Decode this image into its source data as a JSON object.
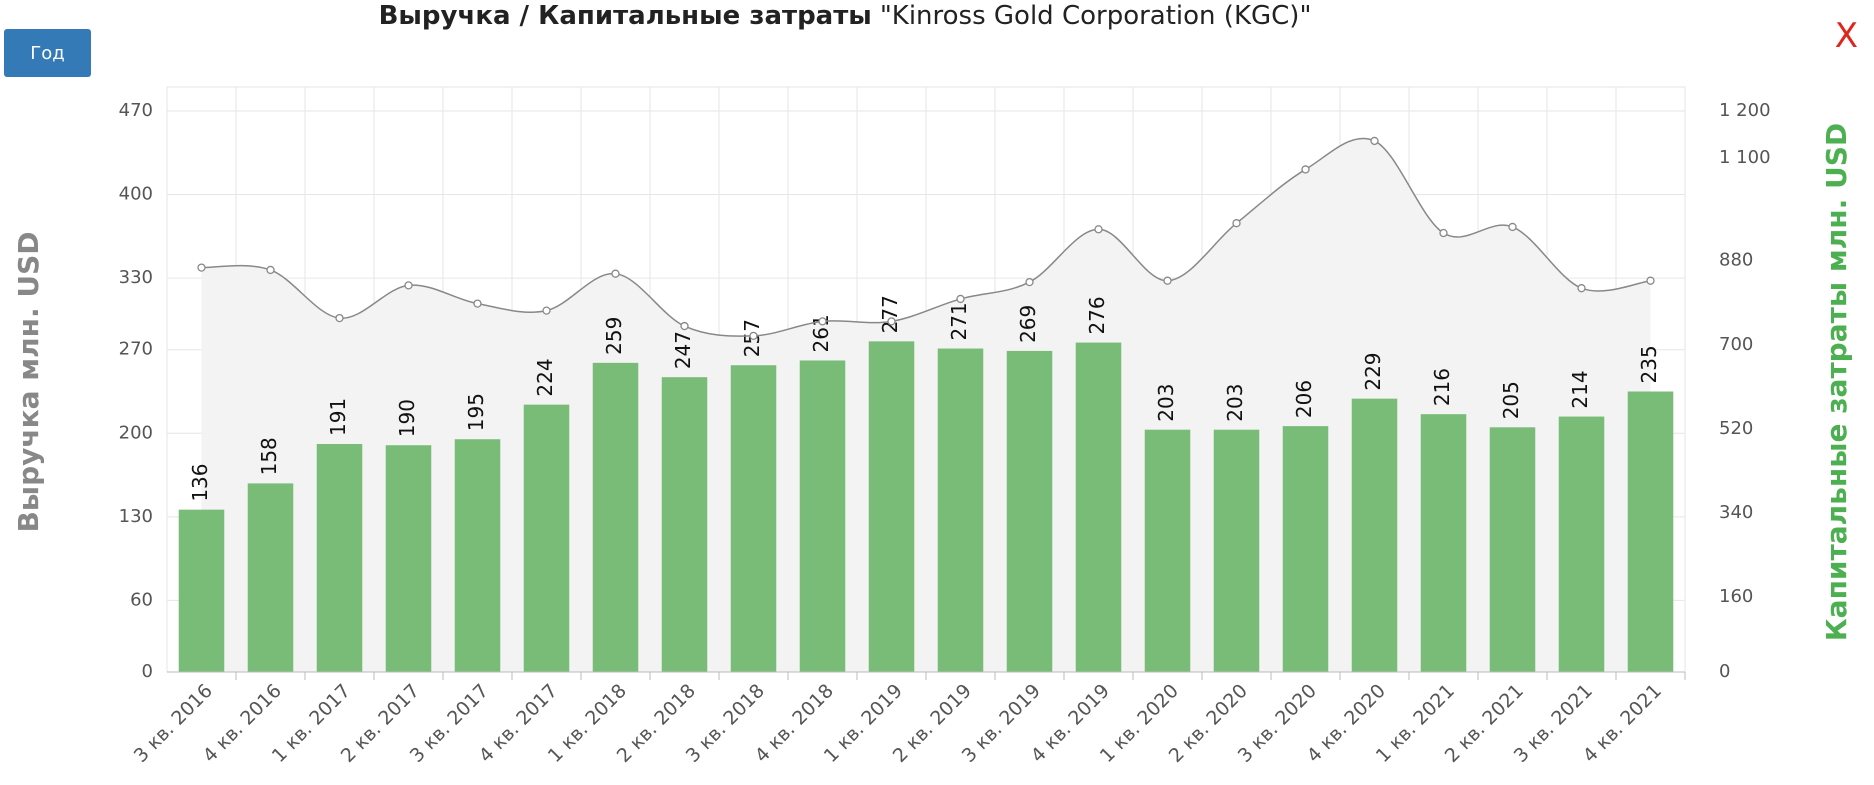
{
  "period_button": "Год",
  "close_button": "X",
  "chart_data": {
    "type": "combo",
    "title": "Выручка / Капитальные затраты",
    "title_suffix": "\"Kinross Gold Corporation (KGC)\"",
    "y_label": "Выручка млн. USD",
    "y2_label": "Капитальные затраты млн. USD",
    "categories": [
      "3 кв. 2016",
      "4 кв. 2016",
      "1 кв. 2017",
      "2 кв. 2017",
      "3 кв. 2017",
      "4 кв. 2017",
      "1 кв. 2018",
      "2 кв. 2018",
      "3 кв. 2018",
      "4 кв. 2018",
      "1 кв. 2019",
      "2 кв. 2019",
      "3 кв. 2019",
      "4 кв. 2019",
      "1 кв. 2020",
      "2 кв. 2020",
      "3 кв. 2020",
      "4 кв. 2020",
      "1 кв. 2021",
      "2 кв. 2021",
      "3 кв. 2021",
      "4 кв. 2021"
    ],
    "series": [
      {
        "type": "bar",
        "color": "#78bc78",
        "show_labels": true,
        "values": [
          136,
          158,
          191,
          190,
          195,
          224,
          259,
          247,
          257,
          261,
          277,
          271,
          269,
          276,
          203,
          203,
          206,
          229,
          216,
          205,
          214,
          235
        ]
      },
      {
        "type": "line",
        "axis": "y2",
        "color": "#888888",
        "area_color": "#f3f3f3",
        "values": [
          865,
          860,
          757,
          827,
          788,
          773,
          852,
          740,
          719,
          750,
          750,
          798,
          834,
          947,
          837,
          960,
          1075,
          1136,
          939,
          952,
          821,
          837
        ]
      }
    ],
    "ylim": [
      0,
      470
    ],
    "yticks": [
      0,
      60,
      130,
      200,
      270,
      330,
      400,
      470
    ],
    "y2lim": [
      0,
      1200
    ],
    "y2ticks": [
      0,
      160,
      340,
      520,
      700,
      880,
      {
        "value": 1100,
        "label": "1 100"
      },
      {
        "value": 1200,
        "label": "1 200"
      }
    ],
    "grid": true
  }
}
